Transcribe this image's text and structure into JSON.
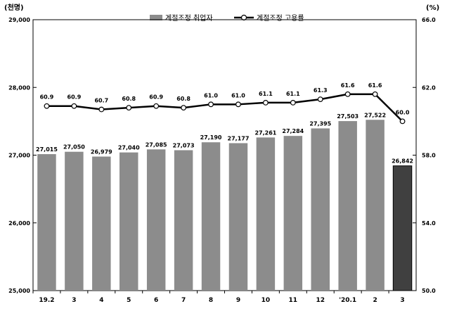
{
  "chart_data": {
    "type": "bar",
    "categories": [
      "19.2",
      "3",
      "4",
      "5",
      "6",
      "7",
      "8",
      "9",
      "10",
      "11",
      "12",
      "'20.1",
      "2",
      "3"
    ],
    "series": [
      {
        "name": "계절조정 취업자",
        "type": "bar",
        "axis": "left",
        "values": [
          27015,
          27050,
          26979,
          27040,
          27085,
          27073,
          27190,
          27177,
          27261,
          27284,
          27395,
          27503,
          27522,
          26842
        ],
        "data_labels": [
          "27,015",
          "27,050",
          "26,979",
          "27,040",
          "27,085",
          "27,073",
          "27,190",
          "27,177",
          "27,261",
          "27,284",
          "27,395",
          "27,503",
          "27,522",
          "26,842"
        ]
      },
      {
        "name": "계절조정 고용률",
        "type": "line",
        "axis": "right",
        "values": [
          60.9,
          60.9,
          60.7,
          60.8,
          60.9,
          60.8,
          61.0,
          61.0,
          61.1,
          61.1,
          61.3,
          61.6,
          61.6,
          60.0
        ],
        "data_labels": [
          "60.9",
          "60.9",
          "60.7",
          "60.8",
          "60.9",
          "60.8",
          "61.0",
          "61.0",
          "61.1",
          "61.1",
          "61.3",
          "61.6",
          "61.6",
          "60.0"
        ]
      }
    ],
    "left_axis": {
      "unit": "(천명)",
      "ylim": [
        25000,
        29000
      ],
      "ticks": [
        25000,
        26000,
        27000,
        28000,
        29000
      ],
      "tick_labels": [
        "25,000",
        "26,000",
        "27,000",
        "28,000",
        "29,000"
      ]
    },
    "right_axis": {
      "unit": "(%)",
      "ylim": [
        50.0,
        66.0
      ],
      "ticks": [
        50.0,
        54.0,
        58.0,
        62.0,
        66.0
      ],
      "tick_labels": [
        "50.0",
        "54.0",
        "58.0",
        "62.0",
        "66.0"
      ]
    },
    "legend_position": "top-center",
    "grid": false,
    "highlight_last_bar": true,
    "colors": {
      "bar": "#8c8c8c",
      "bar_highlight": "#404040",
      "line": "#000000",
      "marker_fill": "#ffffff"
    }
  }
}
